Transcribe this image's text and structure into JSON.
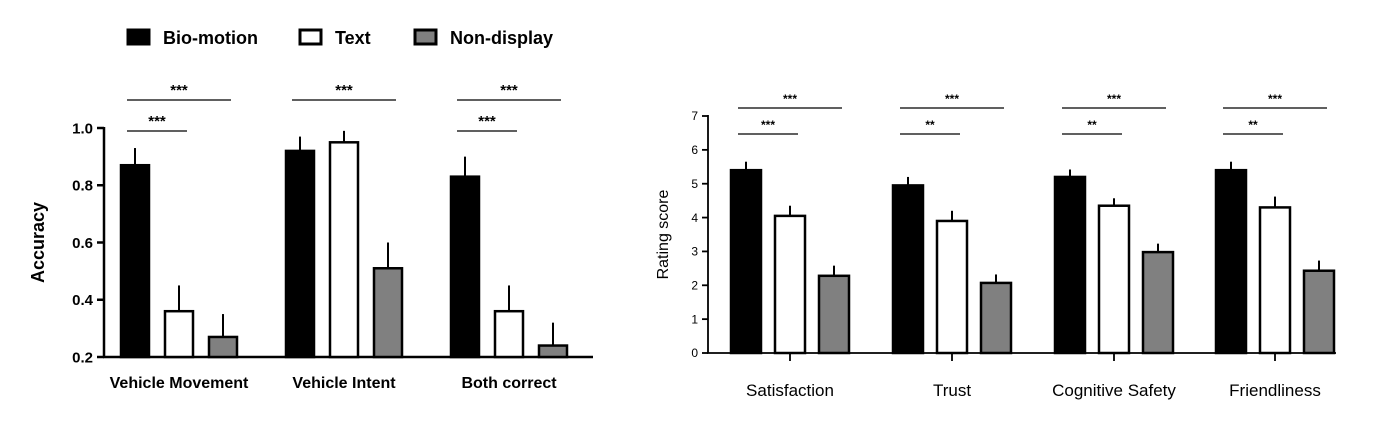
{
  "legend": {
    "items": [
      {
        "label": "Bio-motion",
        "color": "#000000"
      },
      {
        "label": "Text",
        "color": "#ffffff"
      },
      {
        "label": "Non-display",
        "color": "#808080"
      }
    ]
  },
  "chart_data": [
    {
      "type": "bar",
      "ylabel": "Accuracy",
      "xlabel": "",
      "categories": [
        "Vehicle Movement",
        "Vehicle Intent",
        "Both correct"
      ],
      "ylim": [
        0.2,
        1.0
      ],
      "yticks": [
        "0.2",
        "0.4",
        "0.6",
        "0.8",
        "1.0"
      ],
      "series": [
        {
          "name": "Bio-motion",
          "color": "#000000",
          "values": [
            0.87,
            0.92,
            0.83
          ],
          "errors": [
            0.06,
            0.05,
            0.07
          ]
        },
        {
          "name": "Text",
          "color": "#ffffff",
          "values": [
            0.36,
            0.95,
            0.36
          ],
          "errors": [
            0.09,
            0.04,
            0.09
          ]
        },
        {
          "name": "Non-display",
          "color": "#808080",
          "values": [
            0.27,
            0.51,
            0.24
          ],
          "errors": [
            0.08,
            0.09,
            0.08
          ]
        }
      ],
      "significance": [
        {
          "category": 0,
          "from": 0,
          "to": 1,
          "label": "***"
        },
        {
          "category": 0,
          "from": 0,
          "to": 2,
          "label": "***"
        },
        {
          "category": 1,
          "from": 0,
          "to": 2,
          "label": "***"
        },
        {
          "category": 2,
          "from": 0,
          "to": 1,
          "label": "***"
        },
        {
          "category": 2,
          "from": 0,
          "to": 2,
          "label": "***"
        }
      ]
    },
    {
      "type": "bar",
      "ylabel": "Rating score",
      "xlabel": "",
      "categories": [
        "Satisfaction",
        "Trust",
        "Cognitive Safety",
        "Friendliness"
      ],
      "ylim": [
        0,
        7
      ],
      "yticks": [
        "0",
        "1",
        "2",
        "3",
        "4",
        "5",
        "6",
        "7"
      ],
      "series": [
        {
          "name": "Bio-motion",
          "color": "#000000",
          "values": [
            5.4,
            4.95,
            5.2,
            5.4
          ],
          "errors": [
            0.25,
            0.25,
            0.22,
            0.25
          ]
        },
        {
          "name": "Text",
          "color": "#ffffff",
          "values": [
            4.05,
            3.9,
            4.35,
            4.3
          ],
          "errors": [
            0.3,
            0.3,
            0.22,
            0.32
          ]
        },
        {
          "name": "Non-display",
          "color": "#808080",
          "values": [
            2.28,
            2.07,
            2.98,
            2.43
          ],
          "errors": [
            0.3,
            0.25,
            0.25,
            0.3
          ]
        }
      ],
      "significance": [
        {
          "category": 0,
          "from": 0,
          "to": 1,
          "label": "***"
        },
        {
          "category": 0,
          "from": 0,
          "to": 2,
          "label": "***"
        },
        {
          "category": 1,
          "from": 0,
          "to": 1,
          "label": "**"
        },
        {
          "category": 1,
          "from": 0,
          "to": 2,
          "label": "***"
        },
        {
          "category": 2,
          "from": 0,
          "to": 1,
          "label": "**"
        },
        {
          "category": 2,
          "from": 0,
          "to": 2,
          "label": "***"
        },
        {
          "category": 3,
          "from": 0,
          "to": 1,
          "label": "**"
        },
        {
          "category": 3,
          "from": 0,
          "to": 2,
          "label": "***"
        }
      ]
    }
  ]
}
